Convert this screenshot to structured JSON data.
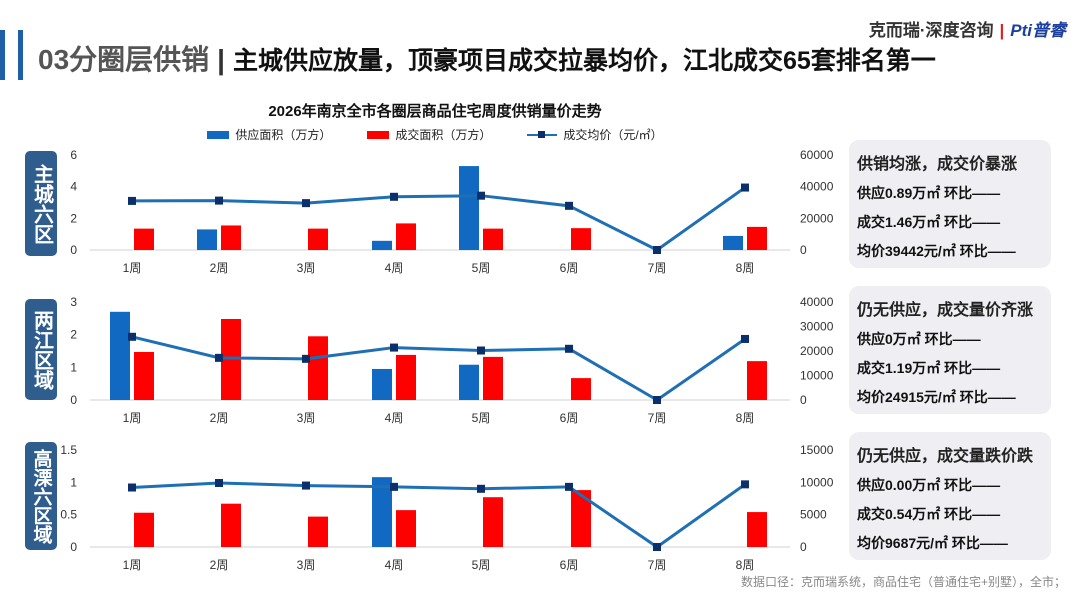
{
  "header": {
    "section": "03分圈层供销",
    "separator": "|",
    "subtitle": "主城供应放量，顶豪项目成交拉暴均价，江北成交65套排名第一",
    "brand_left": "克而瑞·深度咨询",
    "brand_pipe": "|",
    "brand_right": "Pti普睿"
  },
  "chart_title": "2026年南京全市各圈层商品住宅周度供销量价走势",
  "legend": [
    "供应面积（万方）",
    "成交面积（万方）",
    "成交均价（元/㎡）"
  ],
  "colors": {
    "supply": "#1169c1",
    "deal": "#ff0000",
    "price": "#1f6fb5",
    "marker": "#0a2f6b",
    "region_bg": "#2e5d8e"
  },
  "chart_data": [
    {
      "type": "bar",
      "region": "主城六区",
      "categories": [
        "1周",
        "2周",
        "3周",
        "4周",
        "5周",
        "6周",
        "7周",
        "8周"
      ],
      "series": [
        {
          "name": "供应面积（万方）",
          "values": [
            0,
            1.3,
            0,
            0.58,
            5.3,
            0,
            0,
            0.89
          ]
        },
        {
          "name": "成交面积（万方）",
          "values": [
            1.35,
            1.55,
            1.35,
            1.68,
            1.35,
            1.38,
            0,
            1.46
          ]
        },
        {
          "name": "成交均价（元/㎡）",
          "type": "line",
          "values": [
            31000,
            31200,
            29600,
            33600,
            34300,
            27900,
            0,
            39442
          ]
        }
      ],
      "y_left": {
        "range": [
          0,
          6
        ],
        "ticks": [
          "0",
          "2",
          "4",
          "6"
        ]
      },
      "y_right": {
        "range": [
          0,
          60000
        ],
        "ticks": [
          "0",
          "20000",
          "40000",
          "60000"
        ]
      }
    },
    {
      "type": "bar",
      "region": "两江区域",
      "categories": [
        "1周",
        "2周",
        "3周",
        "4周",
        "5周",
        "6周",
        "7周",
        "8周"
      ],
      "series": [
        {
          "name": "供应面积（万方）",
          "values": [
            2.7,
            0,
            0,
            0.95,
            1.08,
            0,
            0,
            0
          ]
        },
        {
          "name": "成交面积（万方）",
          "values": [
            1.47,
            2.48,
            1.95,
            1.38,
            1.32,
            0.67,
            0,
            1.19
          ]
        },
        {
          "name": "成交均价（元/㎡）",
          "type": "line",
          "values": [
            25800,
            17200,
            16800,
            21400,
            20200,
            20900,
            0,
            24915
          ]
        }
      ],
      "y_left": {
        "range": [
          0,
          3
        ],
        "ticks": [
          "0",
          "1",
          "2",
          "3"
        ]
      },
      "y_right": {
        "range": [
          0,
          40000
        ],
        "ticks": [
          "0",
          "10000",
          "20000",
          "30000",
          "40000"
        ]
      }
    },
    {
      "type": "bar",
      "region": "高溧六区域",
      "categories": [
        "1周",
        "2周",
        "3周",
        "4周",
        "5周",
        "6周",
        "7周",
        "8周"
      ],
      "series": [
        {
          "name": "供应面积（万方）",
          "values": [
            0,
            0,
            0,
            1.08,
            0,
            0,
            0,
            0
          ]
        },
        {
          "name": "成交面积（万方）",
          "values": [
            0.53,
            0.67,
            0.47,
            0.57,
            0.77,
            0.88,
            0,
            0.54
          ]
        },
        {
          "name": "成交均价（元/㎡）",
          "type": "line",
          "values": [
            9200,
            9900,
            9500,
            9300,
            9000,
            9300,
            0,
            9687
          ]
        }
      ],
      "y_left": {
        "range": [
          0,
          1.5
        ],
        "ticks": [
          "0",
          "0.5",
          "1",
          "1.5"
        ]
      },
      "y_right": {
        "range": [
          0,
          15000
        ],
        "ticks": [
          "0",
          "5000",
          "10000",
          "15000"
        ]
      }
    }
  ],
  "panels": [
    {
      "head": "供销均涨，成交价暴涨",
      "lines": [
        "供应0.89万㎡  环比——",
        "成交1.46万㎡  环比——",
        "均价39442元/㎡  环比——"
      ]
    },
    {
      "head": "仍无供应，成交量价齐涨",
      "lines": [
        "供应0万㎡  环比——",
        "成交1.19万㎡  环比——",
        "均价24915元/㎡ 环比——"
      ]
    },
    {
      "head": "仍无供应，成交量跌价跌",
      "lines": [
        "供应0.00万㎡  环比——",
        "成交0.54万㎡  环比——",
        "均价9687元/㎡ 环比——"
      ]
    }
  ],
  "footer": "数据口径：克而瑞系统，商品住宅（普通住宅+别墅），全市；"
}
